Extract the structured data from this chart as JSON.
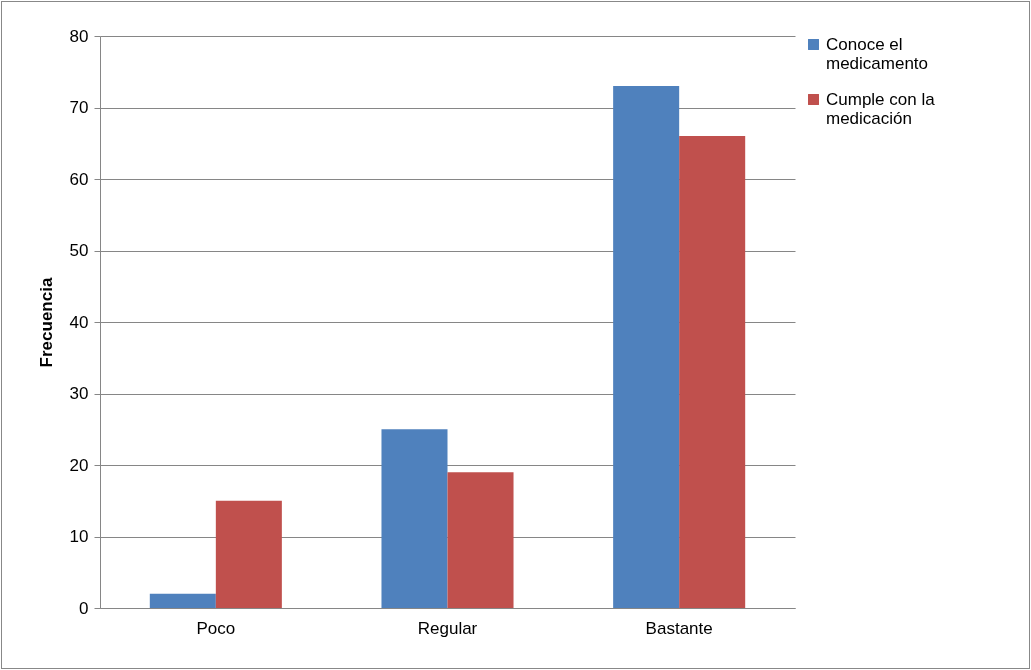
{
  "chart_data": {
    "type": "bar",
    "ylabel": "Frecuencia",
    "categories": [
      "Poco",
      "Regular",
      "Bastante"
    ],
    "series": [
      {
        "name": "Conoce el medicamento",
        "color": "#4f81bd",
        "values": [
          2,
          25,
          73
        ]
      },
      {
        "name": "Cumple con la medicación",
        "color": "#c0504d",
        "values": [
          15,
          19,
          66
        ]
      }
    ],
    "ylim": [
      0,
      80
    ],
    "yticks": [
      0,
      10,
      20,
      30,
      40,
      50,
      60,
      70,
      80
    ],
    "grid": "y",
    "legend": "right"
  }
}
